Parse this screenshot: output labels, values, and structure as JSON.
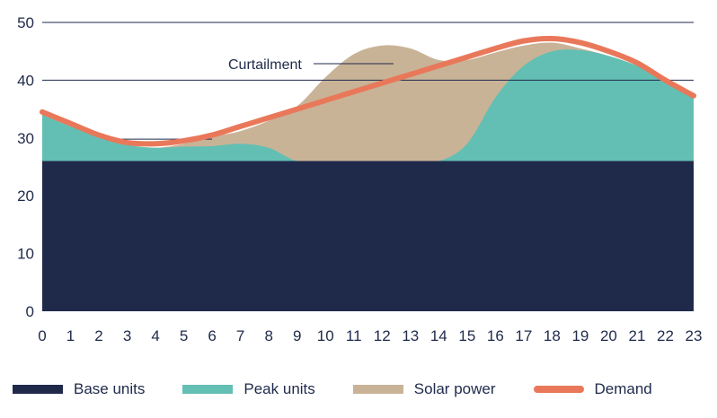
{
  "chart_data": {
    "type": "area",
    "title": "",
    "xlabel": "",
    "ylabel": "",
    "x": [
      0,
      1,
      2,
      3,
      4,
      5,
      6,
      7,
      8,
      9,
      10,
      11,
      12,
      13,
      14,
      15,
      16,
      17,
      18,
      19,
      20,
      21,
      22,
      23
    ],
    "xlim": [
      0,
      23
    ],
    "ylim": [
      0,
      50
    ],
    "yticks": [
      0,
      10,
      20,
      30,
      40,
      50
    ],
    "grid": "horizontal lines at 40 and 50",
    "legend_position": "bottom",
    "series": [
      {
        "name": "Base units",
        "kind": "area",
        "color": "#1f2a4b",
        "values": [
          26,
          26,
          26,
          26,
          26,
          26,
          26,
          26,
          26,
          26,
          26,
          26,
          26,
          26,
          26,
          26,
          26,
          26,
          26,
          26,
          26,
          26,
          26,
          26
        ]
      },
      {
        "name": "Peak units",
        "kind": "area",
        "color": "#63bfb3",
        "values": [
          34,
          32,
          30.2,
          28.8,
          28.3,
          28.5,
          28.6,
          29,
          28.3,
          26,
          26,
          26,
          26,
          26,
          26,
          29,
          37,
          42.5,
          45,
          45.2,
          44.2,
          42.5,
          40,
          37
        ]
      },
      {
        "name": "Solar power",
        "kind": "area",
        "color": "#c9b397",
        "values": [
          34,
          32,
          30.2,
          28.8,
          28.3,
          29,
          30.2,
          31.2,
          33,
          35.5,
          40.5,
          44.5,
          46,
          45.5,
          43.5,
          43.5,
          44.8,
          46,
          46.5,
          45.5,
          44.2,
          42.5,
          40,
          37
        ]
      },
      {
        "name": "Demand",
        "kind": "line",
        "color": "#e9785a",
        "values": [
          34.5,
          32.5,
          30.5,
          29.2,
          29,
          29.5,
          30.5,
          32,
          33.5,
          35,
          36.5,
          38,
          39.5,
          41,
          42.5,
          44,
          45.5,
          46.8,
          47.2,
          46.5,
          45,
          43,
          40,
          37.3
        ]
      }
    ],
    "annotations": [
      {
        "text": "Curtailment"
      }
    ]
  }
}
